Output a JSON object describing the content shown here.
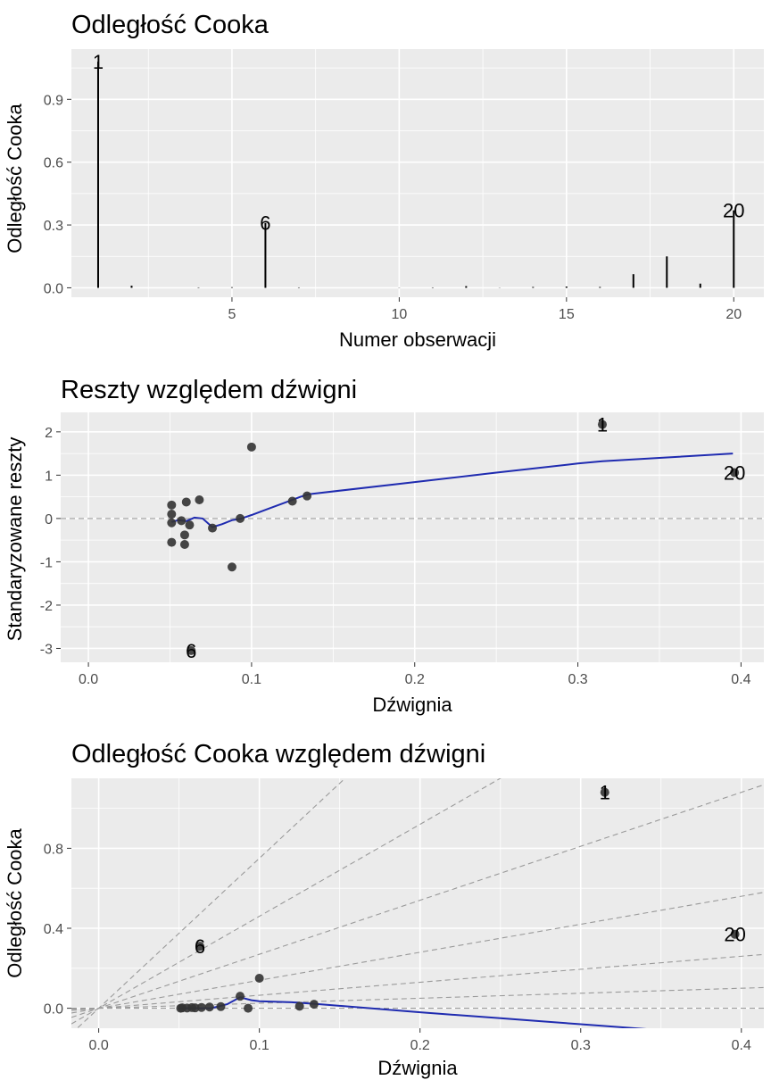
{
  "colors": {
    "panel": "#ebebeb",
    "grid": "#ffffff",
    "point": "#333333",
    "smooth": "#1f2bb0",
    "refline": "#9a9a9a"
  },
  "chart_data": [
    {
      "type": "bar",
      "title": "Odległość Cooka",
      "xlabel": "Numer obserwacji",
      "ylabel": "Odległość Cooka",
      "xlim": [
        0.2,
        20.9
      ],
      "ylim": [
        -0.045,
        1.14
      ],
      "x_ticks": [
        5,
        10,
        15,
        20
      ],
      "x_tick_labels": [
        "5",
        "10",
        "15",
        "20"
      ],
      "y_ticks": [
        0,
        0.3,
        0.6,
        0.9
      ],
      "y_tick_labels": [
        "0.0",
        "0.3",
        "0.6",
        "0.9"
      ],
      "grid": true,
      "x": [
        1,
        2,
        3,
        4,
        5,
        6,
        7,
        8,
        9,
        10,
        11,
        12,
        13,
        14,
        15,
        16,
        17,
        18,
        19,
        20
      ],
      "values": [
        1.08,
        0.01,
        0.0,
        0.002,
        0.003,
        0.31,
        0.002,
        0.0,
        0.0,
        0.001,
        0.002,
        0.008,
        0.001,
        0.004,
        0.006,
        0.004,
        0.065,
        0.15,
        0.02,
        0.37
      ],
      "annotations": [
        {
          "label": "1",
          "x": 1,
          "y": 1.08
        },
        {
          "label": "6",
          "x": 6,
          "y": 0.31
        },
        {
          "label": "20",
          "x": 20,
          "y": 0.37
        }
      ]
    },
    {
      "type": "scatter",
      "title": "Reszty względem dźwigni",
      "xlabel": "Dźwignia",
      "ylabel": "Standaryzowane reszty",
      "xlim": [
        -0.017,
        0.414
      ],
      "ylim": [
        -3.32,
        2.45
      ],
      "x_ticks": [
        0,
        0.1,
        0.2,
        0.3,
        0.4
      ],
      "x_tick_labels": [
        "0.0",
        "0.1",
        "0.2",
        "0.3",
        "0.4"
      ],
      "y_ticks": [
        -3,
        -2,
        -1,
        0,
        1,
        2
      ],
      "y_tick_labels": [
        "-3",
        "-2",
        "-1",
        "0",
        "1",
        "2"
      ],
      "grid": true,
      "reference_line": 0,
      "points": [
        {
          "x": 0.051,
          "y": 0.31
        },
        {
          "x": 0.051,
          "y": 0.1
        },
        {
          "x": 0.051,
          "y": -0.1
        },
        {
          "x": 0.051,
          "y": -0.55
        },
        {
          "x": 0.057,
          "y": -0.05
        },
        {
          "x": 0.059,
          "y": -0.38
        },
        {
          "x": 0.059,
          "y": -0.6
        },
        {
          "x": 0.06,
          "y": 0.38
        },
        {
          "x": 0.062,
          "y": -0.15
        },
        {
          "x": 0.063,
          "y": -3.05
        },
        {
          "x": 0.068,
          "y": 0.43
        },
        {
          "x": 0.076,
          "y": -0.22
        },
        {
          "x": 0.088,
          "y": -1.12
        },
        {
          "x": 0.093,
          "y": 0.0
        },
        {
          "x": 0.1,
          "y": 1.65
        },
        {
          "x": 0.125,
          "y": 0.4
        },
        {
          "x": 0.134,
          "y": 0.52
        },
        {
          "x": 0.315,
          "y": 2.17
        },
        {
          "x": 0.396,
          "y": 1.06
        }
      ],
      "smooth": {
        "x": [
          0.051,
          0.055,
          0.06,
          0.065,
          0.07,
          0.076,
          0.082,
          0.088,
          0.093,
          0.1,
          0.11,
          0.12,
          0.13,
          0.135,
          0.2,
          0.25,
          0.3,
          0.315,
          0.35,
          0.395
        ],
        "y": [
          -0.08,
          -0.04,
          -0.06,
          0.02,
          0.0,
          -0.2,
          -0.13,
          -0.04,
          -0.01,
          0.08,
          0.22,
          0.36,
          0.5,
          0.56,
          0.84,
          1.06,
          1.27,
          1.32,
          1.4,
          1.5
        ]
      },
      "annotations": [
        {
          "label": "1",
          "x": 0.315,
          "y": 2.17
        },
        {
          "label": "6",
          "x": 0.063,
          "y": -3.05
        },
        {
          "label": "20",
          "x": 0.396,
          "y": 1.06
        }
      ]
    },
    {
      "type": "scatter",
      "title": "Odległość Cooka względem dźwigni",
      "xlabel": "Dźwignia",
      "ylabel": "Odległość Cooka",
      "xlim": [
        -0.017,
        0.414
      ],
      "ylim": [
        -0.1,
        1.15
      ],
      "x_ticks": [
        0,
        0.1,
        0.2,
        0.3,
        0.4
      ],
      "x_tick_labels": [
        "0.0",
        "0.1",
        "0.2",
        "0.3",
        "0.4"
      ],
      "y_ticks": [
        0,
        0.4,
        0.8
      ],
      "y_tick_labels": [
        "0.0",
        "0.4",
        "0.8"
      ],
      "grid": true,
      "reference_line": 0,
      "reference_slopes": [
        0.25,
        0.65,
        1.4,
        2.7,
        4.6,
        7.5
      ],
      "points": [
        {
          "x": 0.051,
          "y": 0.0
        },
        {
          "x": 0.052,
          "y": 0.002
        },
        {
          "x": 0.055,
          "y": 0.001
        },
        {
          "x": 0.058,
          "y": 0.003
        },
        {
          "x": 0.06,
          "y": 0.002
        },
        {
          "x": 0.063,
          "y": 0.31
        },
        {
          "x": 0.064,
          "y": 0.004
        },
        {
          "x": 0.069,
          "y": 0.006
        },
        {
          "x": 0.076,
          "y": 0.008
        },
        {
          "x": 0.088,
          "y": 0.06
        },
        {
          "x": 0.093,
          "y": 0.0
        },
        {
          "x": 0.1,
          "y": 0.15
        },
        {
          "x": 0.125,
          "y": 0.01
        },
        {
          "x": 0.134,
          "y": 0.02
        },
        {
          "x": 0.315,
          "y": 1.08
        },
        {
          "x": 0.396,
          "y": 0.37
        }
      ],
      "smooth": {
        "x": [
          0.051,
          0.06,
          0.07,
          0.08,
          0.088,
          0.095,
          0.1,
          0.12,
          0.135,
          0.2,
          0.25,
          0.3,
          0.35,
          0.395
        ],
        "y": [
          0.0,
          0.0,
          0.0,
          0.02,
          0.055,
          0.04,
          0.035,
          0.03,
          0.022,
          -0.02,
          -0.05,
          -0.08,
          -0.11,
          -0.14
        ]
      },
      "annotations": [
        {
          "label": "1",
          "x": 0.315,
          "y": 1.08
        },
        {
          "label": "6",
          "x": 0.063,
          "y": 0.31
        },
        {
          "label": "20",
          "x": 0.396,
          "y": 0.37
        }
      ]
    }
  ]
}
